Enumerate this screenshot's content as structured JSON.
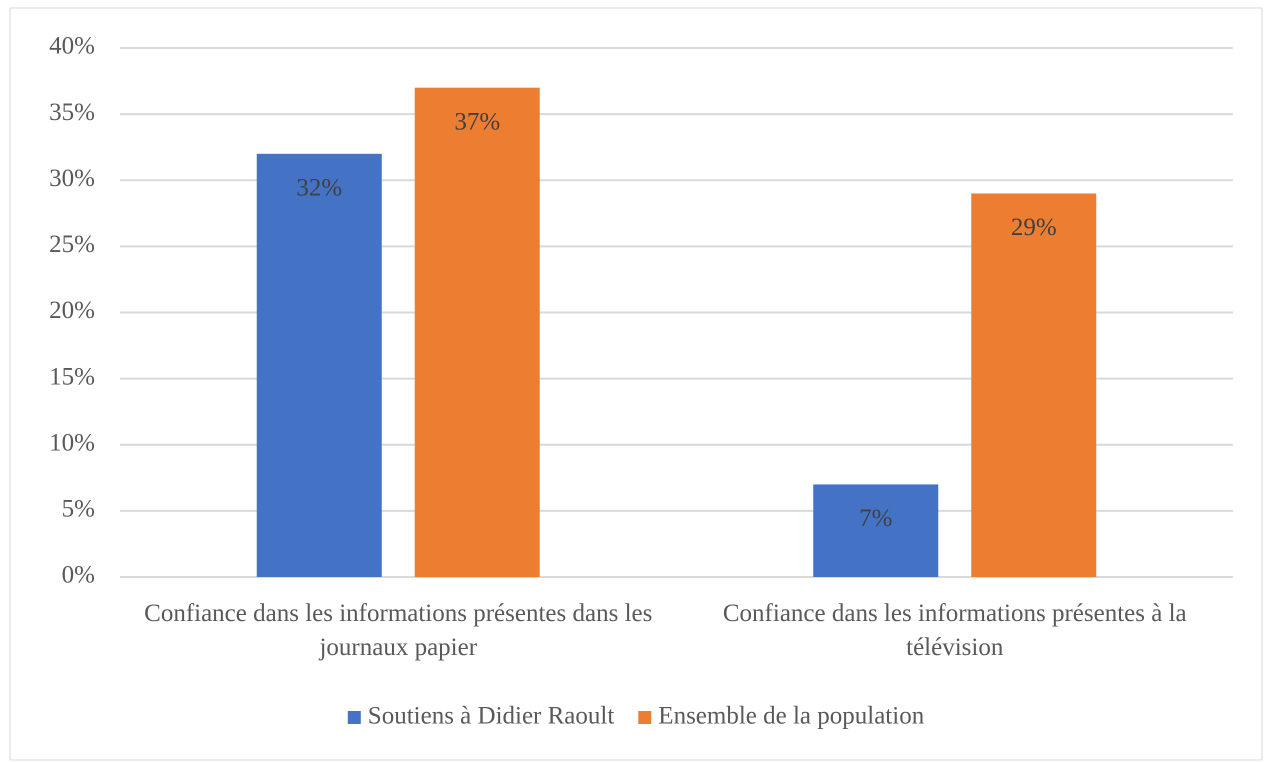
{
  "chart_data": {
    "type": "bar",
    "categories": [
      "Confiance dans les informations présentes dans les journaux papier",
      "Confiance dans les informations présentes à la télévision"
    ],
    "series": [
      {
        "name": "Soutiens à Didier Raoult",
        "color": "#4472c4",
        "values": [
          32,
          7
        ],
        "value_labels": [
          "32%",
          "7%"
        ]
      },
      {
        "name": "Ensemble de la population",
        "color": "#ed7d31",
        "values": [
          37,
          29
        ],
        "value_labels": [
          "37%",
          "29%"
        ]
      }
    ],
    "ylim": [
      0,
      40
    ],
    "yticks": [
      {
        "value": 0,
        "label": "0%"
      },
      {
        "value": 5,
        "label": "5%"
      },
      {
        "value": 10,
        "label": "10%"
      },
      {
        "value": 15,
        "label": "15%"
      },
      {
        "value": 20,
        "label": "20%"
      },
      {
        "value": 25,
        "label": "25%"
      },
      {
        "value": 30,
        "label": "30%"
      },
      {
        "value": 35,
        "label": "35%"
      },
      {
        "value": 40,
        "label": "40%"
      }
    ],
    "grid": true,
    "legend": "bottom"
  }
}
